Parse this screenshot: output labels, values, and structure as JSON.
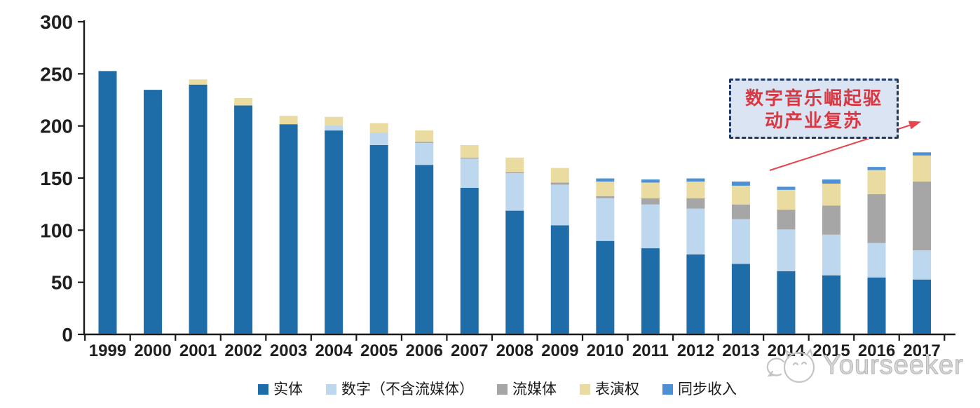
{
  "chart_data": {
    "type": "bar",
    "stacked": true,
    "title": "",
    "xlabel": "",
    "ylabel": "",
    "ylim": [
      0,
      300
    ],
    "yticks": [
      0,
      50,
      100,
      150,
      200,
      250,
      300
    ],
    "grid": false,
    "legend_position": "bottom",
    "categories": [
      "1999",
      "2000",
      "2001",
      "2002",
      "2003",
      "2004",
      "2005",
      "2006",
      "2007",
      "2008",
      "2009",
      "2010",
      "2011",
      "2012",
      "2013",
      "2014",
      "2015",
      "2016",
      "2017"
    ],
    "series": [
      {
        "name": "实体",
        "color": "#1E6CA8",
        "values": [
          252,
          234,
          239,
          219,
          201,
          195,
          181,
          162,
          140,
          118,
          104,
          89,
          82,
          76,
          67,
          60,
          56,
          54,
          52
        ]
      },
      {
        "name": "数字（不含流媒体）",
        "color": "#BDD7EE",
        "values": [
          0,
          0,
          0,
          0,
          0,
          5,
          12,
          21,
          28,
          36,
          39,
          41,
          42,
          44,
          43,
          40,
          39,
          33,
          28
        ]
      },
      {
        "name": "流媒体",
        "color": "#A6A6A6",
        "values": [
          0,
          0,
          0,
          0,
          0,
          0,
          0,
          1,
          1,
          1,
          2,
          2,
          6,
          10,
          14,
          19,
          28,
          47,
          66
        ]
      },
      {
        "name": "表演权",
        "color": "#EADCA0",
        "values": [
          0,
          0,
          5,
          7,
          8,
          8,
          9,
          11,
          12,
          14,
          14,
          14,
          15,
          16,
          18,
          19,
          21,
          23,
          25
        ]
      },
      {
        "name": "同步收入",
        "color": "#4E90D5",
        "values": [
          0,
          0,
          0,
          0,
          0,
          0,
          0,
          0,
          0,
          0,
          0,
          3,
          3,
          3,
          4,
          3,
          4,
          3,
          3
        ]
      }
    ]
  },
  "annotation": {
    "line1": "数字音乐崛起驱",
    "line2": "动产业复苏",
    "text_color": "#D93842",
    "border_color": "#1F3864",
    "fill_color": "#DBE4F2",
    "arrow_color": "#E8444E"
  },
  "axis": {
    "line_color": "#1a1a1a",
    "label_color": "#1f1f1f"
  },
  "watermark": {
    "brand": "Yourseeker",
    "logo": "cat-logo",
    "color": "#bfbfbf"
  }
}
